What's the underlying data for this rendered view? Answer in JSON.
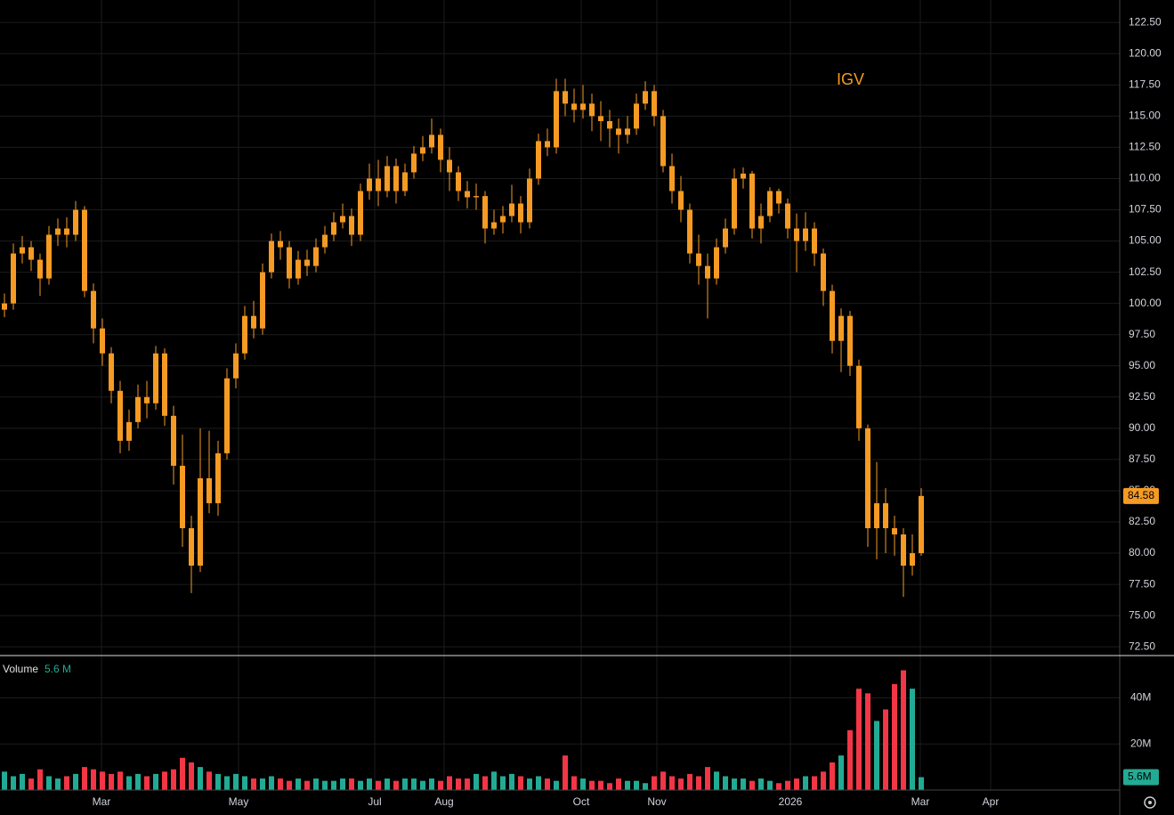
{
  "chart_data": [
    {
      "type": "candlestick",
      "title": "IGV",
      "color": "#f59a23",
      "grid": true,
      "last_price": 84.58,
      "open": [
        99.5,
        100,
        104,
        104.5,
        103.5,
        102,
        105.5,
        106,
        105.5,
        107.5,
        101,
        98,
        96,
        93,
        89,
        90.5,
        92.5,
        92,
        96,
        91,
        87,
        82,
        79,
        86,
        84,
        88,
        94,
        96,
        99,
        98,
        102.5,
        105,
        104.5,
        102,
        103.5,
        103,
        104.5,
        105.5,
        106.5,
        107,
        105.5,
        109,
        110,
        109,
        111,
        109,
        110.5,
        112,
        112.5,
        113.5,
        111.5,
        110.5,
        109,
        108.5,
        108.6,
        106,
        106.5,
        107,
        108,
        106.5,
        110,
        113,
        112.5,
        117,
        116,
        115.5,
        116,
        115,
        114.6,
        114,
        113.5,
        114,
        116,
        117,
        115,
        111,
        109,
        107.5,
        104,
        103,
        102,
        104.5,
        106,
        110,
        110.4,
        106,
        107,
        109,
        108,
        106,
        105,
        106,
        104,
        101,
        97,
        99,
        95,
        90,
        82,
        84,
        82,
        81.5,
        79,
        80
      ],
      "high": [
        100.8,
        104.8,
        105.4,
        105,
        104,
        106.2,
        106.8,
        106.9,
        108.2,
        107.8,
        101.6,
        98.8,
        96.5,
        93.8,
        91.5,
        93.5,
        93.8,
        96.6,
        96.4,
        91.8,
        89.5,
        83,
        90,
        89.8,
        89,
        94.8,
        96.8,
        99.8,
        100.2,
        103.2,
        105.6,
        105.8,
        105,
        104.2,
        104.3,
        105.2,
        106.2,
        107.3,
        108,
        107.6,
        109.6,
        111.2,
        111.5,
        111.8,
        111.6,
        111.2,
        112.6,
        113.4,
        114.8,
        114,
        112.5,
        111,
        109.8,
        109.6,
        109,
        107.5,
        107.8,
        109.5,
        108.6,
        110.8,
        113.6,
        114,
        118,
        118,
        117.2,
        117.5,
        116.8,
        116.2,
        115.5,
        114.8,
        115,
        116.8,
        117.8,
        117.5,
        115.5,
        112,
        110.2,
        108,
        105.5,
        104,
        105.2,
        106.8,
        110.8,
        110.9,
        110.6,
        108,
        109.3,
        109.2,
        108.4,
        107.2,
        107.3,
        106.5,
        104.4,
        101.5,
        99.6,
        99.4,
        95.5,
        90.3,
        87.3,
        85.2,
        83,
        82,
        81.5,
        85.2
      ],
      "low": [
        98.9,
        99.5,
        103.2,
        102.6,
        100.6,
        101.5,
        104.6,
        104.5,
        105,
        100.5,
        96.8,
        95,
        92,
        88,
        88.2,
        90,
        90.8,
        91.5,
        90.2,
        85.5,
        80.5,
        76.8,
        78.5,
        83.2,
        83,
        87.5,
        93.2,
        95.5,
        97.2,
        97.5,
        102,
        103.5,
        101.2,
        101.5,
        102.2,
        102.5,
        104,
        105,
        106,
        104.6,
        105,
        108.3,
        107.8,
        108.5,
        108,
        108.6,
        110,
        111.4,
        112,
        110.5,
        109,
        108.2,
        107.6,
        107.5,
        104.8,
        105.5,
        105.6,
        106.5,
        105.6,
        106,
        109.5,
        111.8,
        112,
        115,
        114.5,
        114.8,
        113.8,
        113,
        112.5,
        112,
        112.8,
        113.5,
        115.5,
        114.2,
        110.5,
        108,
        106.5,
        103.2,
        101.5,
        98.8,
        101.5,
        104,
        105.5,
        109.2,
        105.2,
        104.8,
        106.5,
        107.2,
        105.2,
        102.5,
        104.2,
        103,
        99.8,
        96,
        94.5,
        94.2,
        89,
        80.5,
        79.5,
        80,
        79.8,
        76.5,
        78.2,
        79.8
      ],
      "close": [
        100,
        104,
        104.5,
        103.5,
        102,
        105.5,
        106,
        105.5,
        107.5,
        101,
        98,
        96,
        93,
        89,
        90.5,
        92.5,
        92,
        96,
        91,
        87,
        82,
        79,
        86,
        84,
        88,
        94,
        96,
        99,
        98,
        102.5,
        105,
        104.5,
        102,
        103.5,
        103,
        104.5,
        105.5,
        106.5,
        107,
        105.5,
        109,
        110,
        109,
        111,
        109,
        110.5,
        112,
        112.5,
        113.5,
        111.5,
        110.5,
        109,
        108.5,
        108.6,
        106,
        106.5,
        107,
        108,
        106.5,
        110,
        113,
        112.5,
        117,
        116,
        115.5,
        116,
        115,
        114.6,
        114,
        113.5,
        114,
        116,
        117,
        115,
        111,
        109,
        107.5,
        104,
        103,
        102,
        104.5,
        106,
        110,
        110.4,
        106,
        107,
        109,
        108,
        106,
        105,
        106,
        104,
        101,
        97,
        99,
        95,
        90,
        82,
        84,
        82,
        81.5,
        79,
        80,
        84.58
      ],
      "xlim": [
        -0.5,
        125.3
      ],
      "xticks": [
        {
          "value": 10.9,
          "label": "Mar"
        },
        {
          "value": 26.3,
          "label": "May"
        },
        {
          "value": 41.6,
          "label": "Jul"
        },
        {
          "value": 49.4,
          "label": "Aug"
        },
        {
          "value": 64.8,
          "label": "Oct"
        },
        {
          "value": 73.3,
          "label": "Nov"
        },
        {
          "value": 88.3,
          "label": "2026"
        },
        {
          "value": 102.9,
          "label": "Mar"
        },
        {
          "value": 110.8,
          "label": "Apr"
        }
      ],
      "ylim": [
        71.8,
        124.3
      ],
      "yticks": [
        {
          "value": 72.5,
          "label": "72.50"
        },
        {
          "value": 75,
          "label": "75.00"
        },
        {
          "value": 77.5,
          "label": "77.50"
        },
        {
          "value": 80,
          "label": "80.00"
        },
        {
          "value": 82.5,
          "label": "82.50"
        },
        {
          "value": 85,
          "label": "85.00"
        },
        {
          "value": 87.5,
          "label": "87.50"
        },
        {
          "value": 90,
          "label": "90.00"
        },
        {
          "value": 92.5,
          "label": "92.50"
        },
        {
          "value": 95,
          "label": "95.00"
        },
        {
          "value": 97.5,
          "label": "97.50"
        },
        {
          "value": 100,
          "label": "100.00"
        },
        {
          "value": 102.5,
          "label": "102.50"
        },
        {
          "value": 105,
          "label": "105.00"
        },
        {
          "value": 107.5,
          "label": "107.50"
        },
        {
          "value": 110,
          "label": "110.00"
        },
        {
          "value": 112.5,
          "label": "112.50"
        },
        {
          "value": 115,
          "label": "115.00"
        },
        {
          "value": 117.5,
          "label": "117.50"
        },
        {
          "value": 120,
          "label": "120.00"
        },
        {
          "value": 122.5,
          "label": "122.50"
        }
      ]
    },
    {
      "type": "bar",
      "title": "Volume",
      "legend_value_label": "5.6 M",
      "badge_label": "5.6M",
      "up_color": "#22ab94",
      "down_color": "#f23645",
      "grid": true,
      "values": [
        8,
        6,
        7,
        5,
        9,
        6,
        5,
        6,
        7,
        10,
        9,
        8,
        7,
        8,
        6,
        7,
        6,
        7,
        8,
        9,
        14,
        12,
        10,
        8,
        7,
        6,
        7,
        6,
        5,
        5,
        6,
        5,
        4,
        5,
        4,
        5,
        4,
        4,
        5,
        5,
        4,
        5,
        4,
        5,
        4,
        5,
        5,
        4,
        5,
        4,
        6,
        5,
        5,
        7,
        6,
        8,
        6,
        7,
        6,
        5,
        6,
        5,
        4,
        15,
        6,
        5,
        4,
        4,
        3,
        5,
        4,
        4,
        3,
        6,
        8,
        6,
        5,
        7,
        6,
        10,
        8,
        6,
        5,
        5,
        4,
        5,
        4,
        3,
        4,
        5,
        6,
        6,
        8,
        12,
        15,
        26,
        44,
        42,
        30,
        35,
        46,
        52,
        44,
        5.6
      ],
      "ylim": [
        0,
        58
      ],
      "yticks": [
        {
          "value": 20,
          "label": "20M"
        },
        {
          "value": 40,
          "label": "40M"
        }
      ]
    }
  ]
}
